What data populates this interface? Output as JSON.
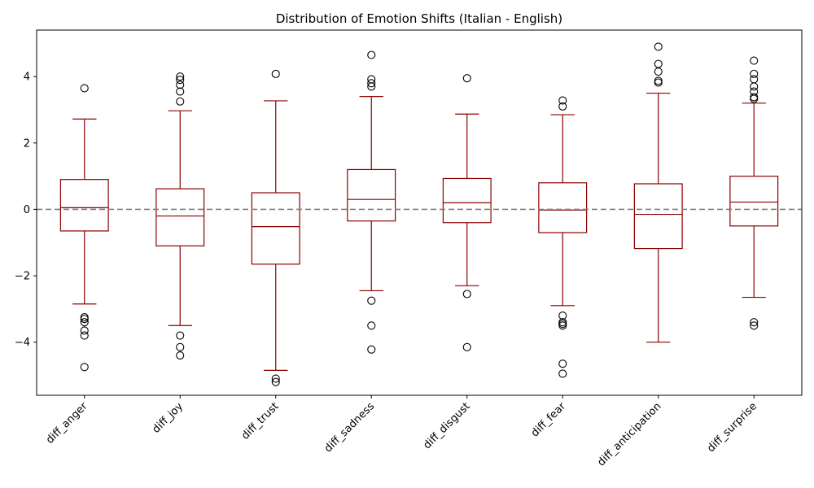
{
  "chart_data": {
    "type": "box",
    "title": "Distribution of Emotion Shifts (Italian - English)",
    "xlabel": "",
    "ylabel": "",
    "ylim": [
      -5.6,
      5.4
    ],
    "yticks": [
      -4,
      -2,
      0,
      2,
      4
    ],
    "ytick_labels": [
      "−4",
      "−2",
      "0",
      "2",
      "4"
    ],
    "reference_line": {
      "y": 0,
      "color": "#808080",
      "style": "dashed"
    },
    "box_color": "#8b0000",
    "flier_color": "#000000",
    "categories": [
      "diff_anger",
      "diff_joy",
      "diff_trust",
      "diff_sadness",
      "diff_disgust",
      "diff_fear",
      "diff_anticipation",
      "diff_surprise"
    ],
    "boxes": [
      {
        "name": "diff_anger",
        "whisker_low": -2.85,
        "q1": -0.65,
        "median": 0.05,
        "q3": 0.9,
        "whisker_high": 2.72,
        "fliers": [
          3.65,
          -3.25,
          -3.3,
          -3.4,
          -3.65,
          -3.8,
          -4.75
        ]
      },
      {
        "name": "diff_joy",
        "whisker_low": -3.5,
        "q1": -1.1,
        "median": -0.2,
        "q3": 0.62,
        "whisker_high": 2.97,
        "fliers": [
          4.0,
          3.9,
          3.75,
          3.55,
          3.25,
          -3.8,
          -4.15,
          -4.4
        ]
      },
      {
        "name": "diff_trust",
        "whisker_low": -4.85,
        "q1": -1.65,
        "median": -0.52,
        "q3": 0.5,
        "whisker_high": 3.27,
        "fliers": [
          4.08,
          -5.1,
          -5.2
        ]
      },
      {
        "name": "diff_sadness",
        "whisker_low": -2.45,
        "q1": -0.35,
        "median": 0.3,
        "q3": 1.2,
        "whisker_high": 3.4,
        "fliers": [
          4.65,
          3.92,
          3.8,
          3.7,
          -2.75,
          -3.5,
          -4.22
        ]
      },
      {
        "name": "diff_disgust",
        "whisker_low": -2.3,
        "q1": -0.4,
        "median": 0.2,
        "q3": 0.93,
        "whisker_high": 2.87,
        "fliers": [
          3.95,
          -2.55,
          -4.15
        ]
      },
      {
        "name": "diff_fear",
        "whisker_low": -2.9,
        "q1": -0.7,
        "median": -0.02,
        "q3": 0.8,
        "whisker_high": 2.85,
        "fliers": [
          3.28,
          3.1,
          -3.2,
          -3.4,
          -3.45,
          -3.5,
          -4.65,
          -4.95
        ]
      },
      {
        "name": "diff_anticipation",
        "whisker_low": -4.0,
        "q1": -1.18,
        "median": -0.15,
        "q3": 0.77,
        "whisker_high": 3.5,
        "fliers": [
          4.9,
          4.38,
          4.15,
          3.87,
          3.82
        ]
      },
      {
        "name": "diff_surprise",
        "whisker_low": -2.65,
        "q1": -0.5,
        "median": 0.22,
        "q3": 1.0,
        "whisker_high": 3.2,
        "fliers": [
          4.48,
          4.08,
          3.92,
          3.7,
          3.55,
          3.38,
          3.33,
          -3.4,
          -3.5
        ]
      }
    ]
  }
}
